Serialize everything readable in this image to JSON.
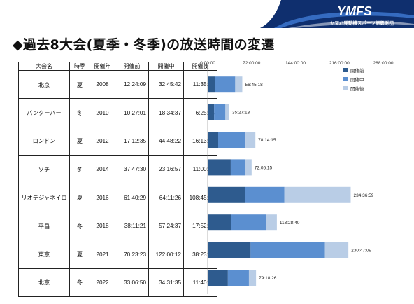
{
  "header": {
    "logo_text": "YMFS",
    "logo_subtitle": "ヤマハ発動機スポーツ振興財団"
  },
  "title": "◆過去8大会(夏季・冬季)の放送時間の変遷",
  "table": {
    "columns": [
      "大会名",
      "時季",
      "開催年",
      "開催前",
      "開催中",
      "開催後"
    ],
    "rows": [
      [
        "北京",
        "夏",
        "2008",
        "12:24:09",
        "32:45:42",
        "11:35:27"
      ],
      [
        "バンクーバー",
        "冬",
        "2010",
        "10:27:01",
        "18:34:37",
        "6:25:35"
      ],
      [
        "ロンドン",
        "夏",
        "2012",
        "17:12:35",
        "44:48:22",
        "16:13:18"
      ],
      [
        "ソチ",
        "冬",
        "2014",
        "37:47:30",
        "23:16:57",
        "11:00:48"
      ],
      [
        "リオデジャネイロ",
        "夏",
        "2016",
        "61:40:29",
        "64:11:26",
        "108:45:04"
      ],
      [
        "平昌",
        "冬",
        "2018",
        "38:11:21",
        "57:24:37",
        "17:52:42"
      ],
      [
        "東京",
        "夏",
        "2021",
        "70:23:23",
        "122:00:12",
        "38:23:34"
      ],
      [
        "北京",
        "冬",
        "2022",
        "33:06:50",
        "34:31:35",
        "11:40:01"
      ]
    ]
  },
  "chart_data": {
    "type": "bar",
    "orientation": "horizontal",
    "stacked": true,
    "categories": [
      "北京 2008",
      "バンクーバー 2010",
      "ロンドン 2012",
      "ソチ 2014",
      "リオデジャネイロ 2016",
      "平昌 2018",
      "東京 2021",
      "北京 2022"
    ],
    "series": [
      {
        "name": "開催前",
        "color": "#2e5b8e",
        "values": [
          12.4025,
          10.4503,
          17.2097,
          37.7917,
          61.6747,
          38.1892,
          70.3897,
          33.1139
        ]
      },
      {
        "name": "開催中",
        "color": "#5b8fd0",
        "values": [
          32.7617,
          18.5769,
          44.8061,
          23.2825,
          64.1906,
          57.41,
          122.0033,
          34.5264
        ]
      },
      {
        "name": "開催後",
        "color": "#b9cde6",
        "values": [
          11.5908,
          6.4264,
          16.2217,
          11.0133,
          108.7511,
          17.8783,
          38.3928,
          11.6669
        ]
      }
    ],
    "totals": [
      "56:45:18",
      "35:27:13",
      "78:14:15",
      "72:05:15",
      "234:36:59",
      "113:28:40",
      "230:47:09",
      "79:18:26"
    ],
    "x_ticks": [
      "0:00:00",
      "72:00:00",
      "144:00:00",
      "216:00:00",
      "288:00:00"
    ],
    "xlim": [
      0,
      288
    ],
    "legend_position": "top-right"
  }
}
